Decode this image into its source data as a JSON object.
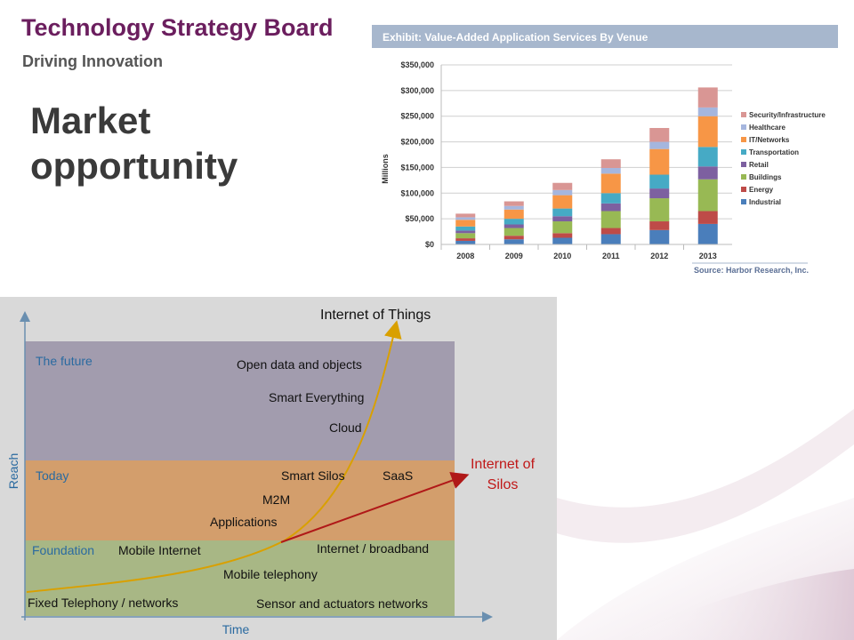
{
  "header": {
    "brand": "Technology Strategy Board",
    "tagline": "Driving Innovation",
    "title_line1": "Market",
    "title_line2": "opportunity"
  },
  "colors": {
    "brand": "#6b1e5e",
    "exhibit_bar": "#a7b7cd",
    "iot_curve": "#d9a000",
    "silos_line": "#b01818"
  },
  "chart_data": [
    {
      "type": "bar",
      "stacked": true,
      "title": "Exhibit: Value-Added Application Services By Venue",
      "ylabel": "Millions",
      "xlabel": "",
      "source": "Source: Harbor Research, Inc.",
      "categories": [
        "2008",
        "2009",
        "2010",
        "2011",
        "2012",
        "2013"
      ],
      "ylim": [
        0,
        350000
      ],
      "yticks": [
        "$0",
        "$50,000",
        "$100,000",
        "$150,000",
        "$200,000",
        "$250,000",
        "$300,000",
        "$350,000"
      ],
      "grid": true,
      "legend_position": "right",
      "series": [
        {
          "name": "Industrial",
          "color": "#4a7ebb",
          "values": [
            7000,
            10000,
            13000,
            20000,
            28000,
            40000
          ]
        },
        {
          "name": "Energy",
          "color": "#be4b48",
          "values": [
            5000,
            7000,
            9000,
            12000,
            17000,
            25000
          ]
        },
        {
          "name": "Buildings",
          "color": "#98b954",
          "values": [
            10000,
            15000,
            23000,
            33000,
            45000,
            62000
          ]
        },
        {
          "name": "Retail",
          "color": "#7d60a0",
          "values": [
            5000,
            7000,
            10000,
            15000,
            19000,
            25000
          ]
        },
        {
          "name": "Transportation",
          "color": "#46aac5",
          "values": [
            8000,
            11000,
            15000,
            20000,
            27000,
            38000
          ]
        },
        {
          "name": "IT/Networks",
          "color": "#f79646",
          "values": [
            13000,
            18000,
            26000,
            38000,
            50000,
            60000
          ]
        },
        {
          "name": "Healthcare",
          "color": "#a5b6de",
          "values": [
            5000,
            7000,
            10000,
            11000,
            14000,
            17000
          ]
        },
        {
          "name": "Security/Infrastructure",
          "color": "#d99694",
          "values": [
            7000,
            9000,
            14000,
            17000,
            27000,
            39000
          ]
        }
      ]
    },
    {
      "type": "diagram",
      "xlabel": "Time",
      "ylabel": "Reach",
      "bands": [
        {
          "label": "The future",
          "color": "#a29cae"
        },
        {
          "label": "Today",
          "color": "#d39e6c"
        },
        {
          "label": "Foundation",
          "color": "#a8b785"
        }
      ],
      "labels": {
        "iot": "Internet of Things",
        "silos_line1": "Internet of",
        "silos_line2": "Silos",
        "open_data": "Open data and objects",
        "smart_everything": "Smart Everything",
        "cloud": "Cloud",
        "smart_silos": "Smart Silos",
        "saas": "SaaS",
        "m2m": "M2M",
        "applications": "Applications",
        "mobile_internet": "Mobile Internet",
        "internet_broadband": "Internet / broadband",
        "mobile_telephony": "Mobile telephony",
        "fixed_telephony": "Fixed Telephony / networks",
        "sensor": "Sensor and actuators networks"
      }
    }
  ]
}
